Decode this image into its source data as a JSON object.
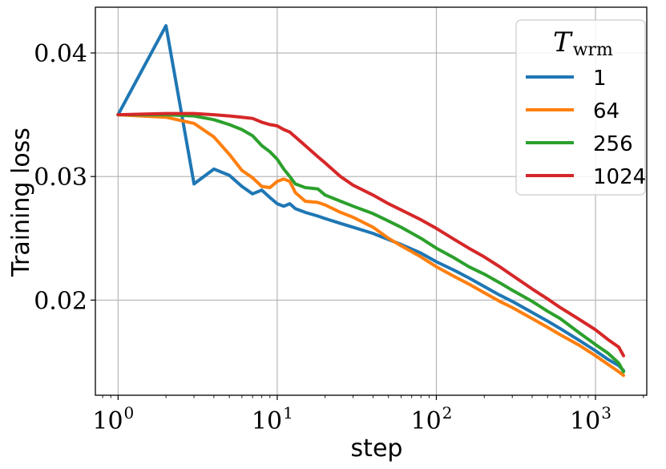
{
  "chart_data": {
    "type": "line",
    "xlabel": "step",
    "ylabel": "Training loss",
    "xscale": "log",
    "xlim": [
      0.72,
      2100
    ],
    "ylim": [
      0.0123,
      0.0437
    ],
    "grid": true,
    "x_ticks": [
      {
        "value": 1,
        "base": "10",
        "exp": "0"
      },
      {
        "value": 10,
        "base": "10",
        "exp": "1"
      },
      {
        "value": 100,
        "base": "10",
        "exp": "2"
      },
      {
        "value": 1000,
        "base": "10",
        "exp": "3"
      }
    ],
    "y_ticks": [
      {
        "value": 0.02,
        "label": "0.02"
      },
      {
        "value": 0.03,
        "label": "0.03"
      },
      {
        "value": 0.04,
        "label": "0.04"
      }
    ],
    "legend": {
      "title_main": "T",
      "title_sub": "wrm",
      "placement": "top-right"
    },
    "series": [
      {
        "name": "1",
        "color": "#1f77b4",
        "points": [
          [
            1,
            0.035
          ],
          [
            2,
            0.0422
          ],
          [
            3,
            0.0294
          ],
          [
            4,
            0.0306
          ],
          [
            5,
            0.0301
          ],
          [
            6,
            0.0292
          ],
          [
            7,
            0.0286
          ],
          [
            8,
            0.0289
          ],
          [
            9,
            0.0283
          ],
          [
            10,
            0.0278
          ],
          [
            11,
            0.0276
          ],
          [
            12,
            0.0278
          ],
          [
            13,
            0.0274
          ],
          [
            15,
            0.0271
          ],
          [
            18,
            0.0268
          ],
          [
            20,
            0.0266
          ],
          [
            25,
            0.0262
          ],
          [
            30,
            0.0259
          ],
          [
            40,
            0.0254
          ],
          [
            50,
            0.0249
          ],
          [
            60,
            0.0245
          ],
          [
            80,
            0.0238
          ],
          [
            100,
            0.0231
          ],
          [
            130,
            0.0224
          ],
          [
            160,
            0.0218
          ],
          [
            200,
            0.0211
          ],
          [
            250,
            0.0204
          ],
          [
            300,
            0.0199
          ],
          [
            400,
            0.019
          ],
          [
            500,
            0.0183
          ],
          [
            600,
            0.0177
          ],
          [
            800,
            0.0167
          ],
          [
            1000,
            0.0159
          ],
          [
            1200,
            0.0152
          ],
          [
            1400,
            0.0147
          ],
          [
            1500,
            0.0143
          ]
        ]
      },
      {
        "name": "64",
        "color": "#ff7f0e",
        "points": [
          [
            1,
            0.035
          ],
          [
            2,
            0.0348
          ],
          [
            3,
            0.0343
          ],
          [
            4,
            0.0332
          ],
          [
            5,
            0.0318
          ],
          [
            6,
            0.0305
          ],
          [
            7,
            0.0299
          ],
          [
            8,
            0.0292
          ],
          [
            9,
            0.0291
          ],
          [
            10,
            0.0296
          ],
          [
            11,
            0.0298
          ],
          [
            12,
            0.0296
          ],
          [
            13,
            0.0287
          ],
          [
            15,
            0.028
          ],
          [
            18,
            0.0279
          ],
          [
            20,
            0.0277
          ],
          [
            25,
            0.0271
          ],
          [
            30,
            0.0267
          ],
          [
            40,
            0.0259
          ],
          [
            50,
            0.025
          ],
          [
            60,
            0.0244
          ],
          [
            80,
            0.0235
          ],
          [
            100,
            0.0227
          ],
          [
            130,
            0.0219
          ],
          [
            160,
            0.0213
          ],
          [
            200,
            0.0206
          ],
          [
            250,
            0.0199
          ],
          [
            300,
            0.0194
          ],
          [
            400,
            0.0185
          ],
          [
            500,
            0.0178
          ],
          [
            600,
            0.0172
          ],
          [
            800,
            0.0163
          ],
          [
            1000,
            0.0155
          ],
          [
            1200,
            0.0148
          ],
          [
            1400,
            0.0142
          ],
          [
            1500,
            0.0139
          ]
        ]
      },
      {
        "name": "256",
        "color": "#2ca02c",
        "points": [
          [
            1,
            0.035
          ],
          [
            2,
            0.035
          ],
          [
            3,
            0.0349
          ],
          [
            4,
            0.0346
          ],
          [
            5,
            0.0342
          ],
          [
            6,
            0.0338
          ],
          [
            7,
            0.0333
          ],
          [
            8,
            0.0325
          ],
          [
            9,
            0.032
          ],
          [
            10,
            0.0314
          ],
          [
            11,
            0.0306
          ],
          [
            12,
            0.03
          ],
          [
            13,
            0.0294
          ],
          [
            15,
            0.0291
          ],
          [
            18,
            0.029
          ],
          [
            20,
            0.0285
          ],
          [
            25,
            0.028
          ],
          [
            30,
            0.0276
          ],
          [
            40,
            0.027
          ],
          [
            50,
            0.0264
          ],
          [
            60,
            0.0259
          ],
          [
            80,
            0.025
          ],
          [
            100,
            0.0242
          ],
          [
            130,
            0.0234
          ],
          [
            160,
            0.0227
          ],
          [
            200,
            0.0221
          ],
          [
            250,
            0.0214
          ],
          [
            300,
            0.0208
          ],
          [
            400,
            0.0199
          ],
          [
            500,
            0.0191
          ],
          [
            600,
            0.0185
          ],
          [
            800,
            0.0173
          ],
          [
            1000,
            0.0164
          ],
          [
            1200,
            0.0157
          ],
          [
            1400,
            0.0149
          ],
          [
            1500,
            0.0142
          ]
        ]
      },
      {
        "name": "1024",
        "color": "#d62728",
        "points": [
          [
            1,
            0.035
          ],
          [
            2,
            0.0351
          ],
          [
            3,
            0.0351
          ],
          [
            4,
            0.035
          ],
          [
            5,
            0.0349
          ],
          [
            6,
            0.0348
          ],
          [
            7,
            0.0347
          ],
          [
            8,
            0.0344
          ],
          [
            9,
            0.0342
          ],
          [
            10,
            0.0341
          ],
          [
            11,
            0.0338
          ],
          [
            12,
            0.0336
          ],
          [
            13,
            0.0332
          ],
          [
            15,
            0.0325
          ],
          [
            18,
            0.0316
          ],
          [
            20,
            0.0311
          ],
          [
            25,
            0.03
          ],
          [
            30,
            0.0293
          ],
          [
            40,
            0.0285
          ],
          [
            50,
            0.0278
          ],
          [
            60,
            0.0273
          ],
          [
            80,
            0.0265
          ],
          [
            100,
            0.0258
          ],
          [
            130,
            0.0249
          ],
          [
            160,
            0.0242
          ],
          [
            200,
            0.0235
          ],
          [
            250,
            0.0227
          ],
          [
            300,
            0.022
          ],
          [
            400,
            0.0209
          ],
          [
            500,
            0.0201
          ],
          [
            600,
            0.0194
          ],
          [
            800,
            0.0184
          ],
          [
            1000,
            0.0176
          ],
          [
            1200,
            0.0168
          ],
          [
            1400,
            0.0162
          ],
          [
            1500,
            0.0155
          ]
        ]
      }
    ]
  }
}
